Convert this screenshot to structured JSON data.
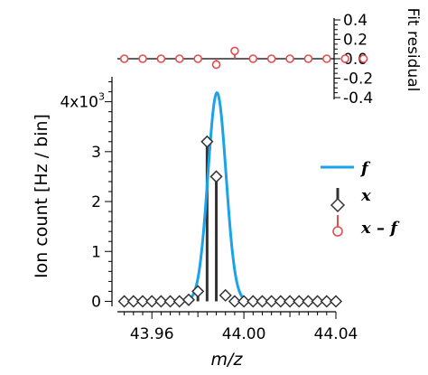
{
  "chart_data": [
    {
      "type": "line",
      "panel": "main",
      "xlabel": "m/z",
      "ylabel": "Ion count [Hz / bin]",
      "xlim": [
        43.945,
        44.04
      ],
      "ylim": [
        -0.1,
        4.5
      ],
      "y_multiplier_label": "4x10",
      "y_multiplier_exp": "3",
      "x_ticks": [
        43.96,
        44.0,
        44.04
      ],
      "x_tick_labels": [
        "43.96",
        "44.00",
        "44.04"
      ],
      "y_ticks": [
        0,
        1,
        2,
        3,
        4
      ],
      "y_tick_labels": [
        "0",
        "1",
        "2",
        "3",
        ""
      ],
      "legend": {
        "placement": "right",
        "entries": [
          {
            "label": "f",
            "color": "#1aa3e8",
            "marker": "line"
          },
          {
            "label": "x",
            "color": "#333333",
            "marker": "diamond-stem"
          },
          {
            "label": "x – f",
            "color": "#e34d4d",
            "marker": "circle-stem"
          }
        ]
      },
      "series": [
        {
          "name": "f",
          "kind": "gaussian",
          "color": "#1aa3e8",
          "amplitude": 4.18,
          "center": 43.9883,
          "sigma": 0.00395,
          "baseline": 0.0
        },
        {
          "name": "x",
          "kind": "stem",
          "color": "#333333",
          "x": [
            43.948,
            43.952,
            43.956,
            43.96,
            43.964,
            43.968,
            43.972,
            43.976,
            43.98,
            43.984,
            43.988,
            43.992,
            43.996,
            44.0,
            44.004,
            44.008,
            44.012,
            44.016,
            44.02,
            44.024,
            44.028,
            44.032,
            44.036,
            44.04
          ],
          "y": [
            0,
            0,
            0,
            0,
            0,
            0,
            0,
            0.03,
            0.2,
            3.2,
            2.5,
            0.12,
            0,
            0,
            0,
            0,
            0,
            0,
            0,
            0,
            0,
            0,
            0,
            0
          ]
        }
      ]
    },
    {
      "type": "scatter",
      "panel": "residual",
      "ylabel": "Fit residual",
      "ylim": [
        -0.4,
        0.4
      ],
      "y_ticks": [
        0.4,
        0.2,
        0.0,
        -0.2,
        -0.4
      ],
      "y_tick_labels": [
        "0.4",
        "0.2",
        "0.0",
        "-0.2",
        "-0.4"
      ],
      "series": [
        {
          "name": "x – f",
          "kind": "stem",
          "color": "#e34d4d",
          "x": [
            43.948,
            43.956,
            43.964,
            43.972,
            43.98,
            43.988,
            43.996,
            44.004,
            44.012,
            44.02,
            44.028,
            44.036,
            44.044,
            44.052
          ],
          "y": [
            0,
            0,
            0,
            0,
            0,
            -0.06,
            0.08,
            0,
            0,
            0,
            0,
            0,
            0,
            0
          ]
        }
      ]
    }
  ]
}
